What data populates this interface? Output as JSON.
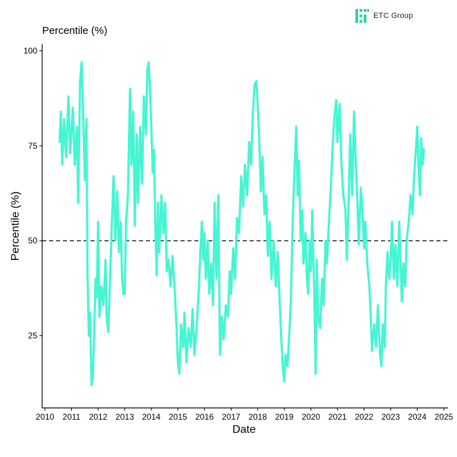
{
  "branding": {
    "logo_text": "ETC Group",
    "logo_icon": "etc-group-logo-icon",
    "logo_color": "#2fd3a8"
  },
  "chart_data": {
    "type": "line",
    "title": "",
    "subtitle": "Percentile (%)",
    "xlabel": "Date",
    "ylabel": "Percentile (%)",
    "xlim": [
      2010,
      2025
    ],
    "ylim": [
      10,
      101
    ],
    "x_ticks": [
      "2010",
      "2011",
      "2012",
      "2013",
      "2014",
      "2015",
      "2016",
      "2017",
      "2018",
      "2019",
      "2020",
      "2021",
      "2022",
      "2023",
      "2024",
      "2025"
    ],
    "y_ticks": [
      "25",
      "50",
      "75",
      "100"
    ],
    "reference_line": {
      "y": 50,
      "style": "dashed",
      "color": "#000000"
    },
    "line_color": "#46f5d3",
    "grid": false,
    "series": [
      {
        "name": "",
        "points": [
          [
            2010.55,
            76
          ],
          [
            2010.6,
            84
          ],
          [
            2010.65,
            70
          ],
          [
            2010.72,
            82
          ],
          [
            2010.8,
            72
          ],
          [
            2010.88,
            88
          ],
          [
            2010.95,
            73
          ],
          [
            2011.05,
            85
          ],
          [
            2011.12,
            70
          ],
          [
            2011.2,
            80
          ],
          [
            2011.25,
            60
          ],
          [
            2011.32,
            92
          ],
          [
            2011.38,
            97
          ],
          [
            2011.45,
            80
          ],
          [
            2011.5,
            66
          ],
          [
            2011.56,
            82
          ],
          [
            2011.6,
            42
          ],
          [
            2011.65,
            25
          ],
          [
            2011.7,
            31
          ],
          [
            2011.75,
            12
          ],
          [
            2011.8,
            14
          ],
          [
            2011.85,
            25
          ],
          [
            2011.9,
            40
          ],
          [
            2011.95,
            35
          ],
          [
            2012.0,
            55
          ],
          [
            2012.05,
            30
          ],
          [
            2012.12,
            38
          ],
          [
            2012.2,
            33
          ],
          [
            2012.28,
            45
          ],
          [
            2012.32,
            30
          ],
          [
            2012.38,
            26
          ],
          [
            2012.45,
            40
          ],
          [
            2012.52,
            55
          ],
          [
            2012.58,
            67
          ],
          [
            2012.65,
            50
          ],
          [
            2012.72,
            63
          ],
          [
            2012.78,
            47
          ],
          [
            2012.85,
            55
          ],
          [
            2012.9,
            40
          ],
          [
            2012.95,
            36
          ],
          [
            2013.0,
            36
          ],
          [
            2013.05,
            55
          ],
          [
            2013.12,
            62
          ],
          [
            2013.2,
            90
          ],
          [
            2013.25,
            70
          ],
          [
            2013.32,
            84
          ],
          [
            2013.38,
            54
          ],
          [
            2013.45,
            78
          ],
          [
            2013.5,
            60
          ],
          [
            2013.58,
            80
          ],
          [
            2013.65,
            65
          ],
          [
            2013.72,
            88
          ],
          [
            2013.8,
            78
          ],
          [
            2013.85,
            95
          ],
          [
            2013.9,
            97
          ],
          [
            2013.95,
            90
          ],
          [
            2014.0,
            80
          ],
          [
            2014.05,
            68
          ],
          [
            2014.1,
            74
          ],
          [
            2014.15,
            55
          ],
          [
            2014.2,
            41
          ],
          [
            2014.25,
            60
          ],
          [
            2014.3,
            47
          ],
          [
            2014.38,
            62
          ],
          [
            2014.45,
            52
          ],
          [
            2014.52,
            60
          ],
          [
            2014.58,
            42
          ],
          [
            2014.65,
            45
          ],
          [
            2014.72,
            38
          ],
          [
            2014.8,
            46
          ],
          [
            2014.88,
            37
          ],
          [
            2014.95,
            27
          ],
          [
            2015.0,
            18
          ],
          [
            2015.05,
            15
          ],
          [
            2015.12,
            28
          ],
          [
            2015.2,
            22
          ],
          [
            2015.25,
            31
          ],
          [
            2015.32,
            18
          ],
          [
            2015.4,
            27
          ],
          [
            2015.48,
            22
          ],
          [
            2015.55,
            32
          ],
          [
            2015.62,
            20
          ],
          [
            2015.7,
            27
          ],
          [
            2015.78,
            36
          ],
          [
            2015.85,
            48
          ],
          [
            2015.9,
            55
          ],
          [
            2015.95,
            45
          ],
          [
            2016.0,
            52
          ],
          [
            2016.05,
            40
          ],
          [
            2016.12,
            50
          ],
          [
            2016.18,
            36
          ],
          [
            2016.25,
            44
          ],
          [
            2016.32,
            33
          ],
          [
            2016.38,
            60
          ],
          [
            2016.45,
            40
          ],
          [
            2016.52,
            62
          ],
          [
            2016.58,
            20
          ],
          [
            2016.65,
            30
          ],
          [
            2016.72,
            24
          ],
          [
            2016.8,
            33
          ],
          [
            2016.88,
            30
          ],
          [
            2016.95,
            42
          ],
          [
            2017.0,
            36
          ],
          [
            2017.08,
            48
          ],
          [
            2017.15,
            40
          ],
          [
            2017.22,
            56
          ],
          [
            2017.3,
            52
          ],
          [
            2017.38,
            67
          ],
          [
            2017.45,
            59
          ],
          [
            2017.52,
            70
          ],
          [
            2017.6,
            62
          ],
          [
            2017.68,
            76
          ],
          [
            2017.75,
            70
          ],
          [
            2017.82,
            84
          ],
          [
            2017.88,
            91
          ],
          [
            2017.95,
            92
          ],
          [
            2018.0,
            86
          ],
          [
            2018.05,
            78
          ],
          [
            2018.12,
            63
          ],
          [
            2018.18,
            72
          ],
          [
            2018.25,
            57
          ],
          [
            2018.32,
            62
          ],
          [
            2018.38,
            46
          ],
          [
            2018.45,
            55
          ],
          [
            2018.52,
            40
          ],
          [
            2018.6,
            50
          ],
          [
            2018.68,
            38
          ],
          [
            2018.75,
            47
          ],
          [
            2018.82,
            35
          ],
          [
            2018.88,
            25
          ],
          [
            2018.95,
            16
          ],
          [
            2019.0,
            13
          ],
          [
            2019.05,
            20
          ],
          [
            2019.12,
            17
          ],
          [
            2019.2,
            27
          ],
          [
            2019.25,
            35
          ],
          [
            2019.32,
            56
          ],
          [
            2019.38,
            68
          ],
          [
            2019.45,
            80
          ],
          [
            2019.5,
            62
          ],
          [
            2019.55,
            71
          ],
          [
            2019.62,
            50
          ],
          [
            2019.68,
            58
          ],
          [
            2019.72,
            44
          ],
          [
            2019.8,
            52
          ],
          [
            2019.85,
            40
          ],
          [
            2019.9,
            36
          ],
          [
            2019.95,
            50
          ],
          [
            2020.0,
            42
          ],
          [
            2020.05,
            58
          ],
          [
            2020.12,
            38
          ],
          [
            2020.18,
            15
          ],
          [
            2020.22,
            45
          ],
          [
            2020.28,
            30
          ],
          [
            2020.35,
            27
          ],
          [
            2020.42,
            40
          ],
          [
            2020.48,
            33
          ],
          [
            2020.55,
            50
          ],
          [
            2020.6,
            44
          ],
          [
            2020.68,
            55
          ],
          [
            2020.75,
            64
          ],
          [
            2020.82,
            75
          ],
          [
            2020.88,
            82
          ],
          [
            2020.95,
            87
          ],
          [
            2021.0,
            76
          ],
          [
            2021.08,
            86
          ],
          [
            2021.15,
            70
          ],
          [
            2021.22,
            62
          ],
          [
            2021.3,
            58
          ],
          [
            2021.35,
            45
          ],
          [
            2021.4,
            55
          ],
          [
            2021.48,
            78
          ],
          [
            2021.55,
            62
          ],
          [
            2021.62,
            84
          ],
          [
            2021.68,
            72
          ],
          [
            2021.75,
            60
          ],
          [
            2021.8,
            49
          ],
          [
            2021.88,
            64
          ],
          [
            2021.95,
            56
          ],
          [
            2022.0,
            48
          ],
          [
            2022.05,
            55
          ],
          [
            2022.12,
            44
          ],
          [
            2022.2,
            38
          ],
          [
            2022.25,
            30
          ],
          [
            2022.3,
            21
          ],
          [
            2022.38,
            28
          ],
          [
            2022.45,
            22
          ],
          [
            2022.52,
            33
          ],
          [
            2022.6,
            20
          ],
          [
            2022.65,
            17
          ],
          [
            2022.7,
            28
          ],
          [
            2022.78,
            22
          ],
          [
            2022.82,
            38
          ],
          [
            2022.88,
            47
          ],
          [
            2022.95,
            40
          ],
          [
            2023.0,
            45
          ],
          [
            2023.05,
            55
          ],
          [
            2023.12,
            40
          ],
          [
            2023.18,
            49
          ],
          [
            2023.25,
            38
          ],
          [
            2023.32,
            55
          ],
          [
            2023.38,
            43
          ],
          [
            2023.42,
            34
          ],
          [
            2023.48,
            44
          ],
          [
            2023.55,
            38
          ],
          [
            2023.6,
            50
          ],
          [
            2023.68,
            55
          ],
          [
            2023.75,
            62
          ],
          [
            2023.82,
            57
          ],
          [
            2023.88,
            67
          ],
          [
            2023.95,
            74
          ],
          [
            2024.0,
            80
          ],
          [
            2024.05,
            69
          ],
          [
            2024.1,
            62
          ],
          [
            2024.15,
            77
          ],
          [
            2024.2,
            70
          ],
          [
            2024.25,
            74
          ]
        ]
      }
    ]
  }
}
